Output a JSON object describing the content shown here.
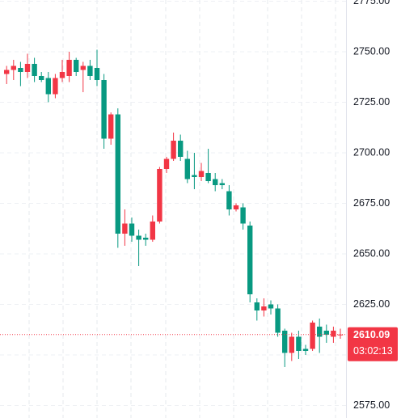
{
  "chart_data": {
    "type": "candlestick",
    "up_color": "#f23645",
    "down_color": "#089981",
    "open": [
      2739,
      2741,
      2742,
      2740,
      2744,
      2738,
      2737,
      2729,
      2737,
      2738,
      2746,
      2741,
      2743,
      2742,
      2736,
      2707,
      2719,
      2660,
      2665,
      2659,
      2658,
      2657,
      2666,
      2692,
      2697,
      2706,
      2697,
      2689,
      2688,
      2690,
      2687,
      2685,
      2681,
      2672,
      2673,
      2664,
      2626,
      2622,
      2625,
      2623,
      2612,
      2601,
      2609,
      2603,
      2603,
      2614,
      2612,
      2609,
      2610
    ],
    "high": [
      2743,
      2746,
      2745,
      2749,
      2747,
      2740,
      2740,
      2739,
      2746,
      2750,
      2747,
      2745,
      2746,
      2751,
      2739,
      2720,
      2722,
      2672,
      2668,
      2662,
      2660,
      2669,
      2693,
      2698,
      2710,
      2709,
      2701,
      2700,
      2695,
      2702,
      2690,
      2687,
      2684,
      2675,
      2675,
      2666,
      2628,
      2628,
      2627,
      2625,
      2613,
      2611,
      2612,
      2605,
      2617,
      2618,
      2615,
      2614,
      2613
    ],
    "low": [
      2734,
      2736,
      2733,
      2737,
      2735,
      2735,
      2725,
      2727,
      2735,
      2735,
      2738,
      2730,
      2736,
      2733,
      2702,
      2704,
      2653,
      2654,
      2656,
      2644,
      2654,
      2656,
      2665,
      2690,
      2696,
      2696,
      2685,
      2682,
      2686,
      2685,
      2681,
      2682,
      2669,
      2671,
      2662,
      2626,
      2617,
      2619,
      2620,
      2609,
      2594,
      2597,
      2598,
      2600,
      2602,
      2601,
      2606,
      2606,
      2608
    ],
    "close": [
      2741,
      2743,
      2740,
      2744,
      2738,
      2736,
      2729,
      2737,
      2740,
      2746,
      2740,
      2743,
      2738,
      2736,
      2707,
      2719,
      2660,
      2665,
      2659,
      2657,
      2657,
      2666,
      2692,
      2697,
      2706,
      2698,
      2687,
      2688,
      2691,
      2686,
      2684,
      2684,
      2672,
      2674,
      2665,
      2630,
      2622,
      2624,
      2623,
      2611,
      2601,
      2609,
      2602,
      2602,
      2616,
      2609,
      2610,
      2612,
      2610.09
    ],
    "ylim": [
      2568.8,
      2775.6
    ],
    "yticks": [
      {
        "value": 2575,
        "label": "2575.00"
      },
      {
        "value": 2600,
        "label": "2600.00"
      },
      {
        "value": 2625,
        "label": "2625.00"
      },
      {
        "value": 2650,
        "label": "2650.00"
      },
      {
        "value": 2675,
        "label": "2675.00"
      },
      {
        "value": 2700,
        "label": "2700.00"
      },
      {
        "value": 2725,
        "label": "2725.00"
      },
      {
        "value": 2750,
        "label": "2750.00"
      },
      {
        "value": 2775,
        "label": "2775.00"
      }
    ],
    "grid": true,
    "last_price": 2610.09,
    "countdown": "03:02:13"
  }
}
